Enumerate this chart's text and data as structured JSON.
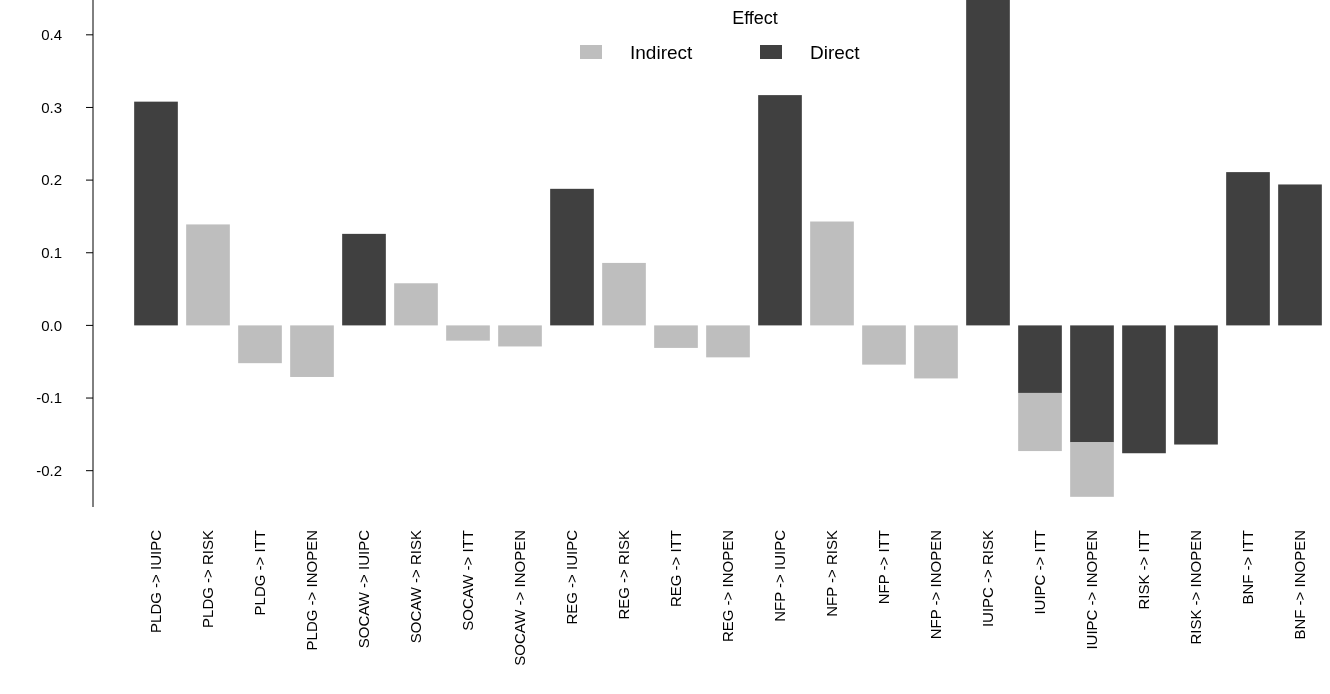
{
  "chart_data": {
    "type": "bar",
    "stacked": true,
    "legend_title": "Effect",
    "legend": "top",
    "categories": [
      "PLDG -> IUIPC",
      "PLDG -> RISK",
      "PLDG -> ITT",
      "PLDG -> INOPEN",
      "SOCAW -> IUIPC",
      "SOCAW -> RISK",
      "SOCAW -> ITT",
      "SOCAW -> INOPEN",
      "REG -> IUIPC",
      "REG -> RISK",
      "REG -> ITT",
      "REG -> INOPEN",
      "NFP -> IUIPC",
      "NFP -> RISK",
      "NFP -> ITT",
      "NFP -> INOPEN",
      "IUIPC -> RISK",
      "IUIPC -> ITT",
      "IUIPC -> INOPEN",
      "RISK -> ITT",
      "RISK -> INOPEN",
      "BNF -> ITT",
      "BNF -> INOPEN"
    ],
    "series": [
      {
        "name": "Direct",
        "color": "#404040",
        "values": [
          0.308,
          null,
          null,
          null,
          0.126,
          null,
          null,
          null,
          0.188,
          null,
          null,
          null,
          0.317,
          null,
          null,
          null,
          0.45,
          -0.093,
          -0.161,
          -0.176,
          -0.164,
          0.211,
          0.194
        ]
      },
      {
        "name": "Indirect",
        "color": "#bebebe",
        "values": [
          null,
          0.139,
          -0.052,
          -0.071,
          null,
          0.058,
          -0.021,
          -0.029,
          null,
          0.086,
          -0.031,
          -0.044,
          null,
          0.143,
          -0.054,
          -0.073,
          null,
          -0.08,
          -0.075,
          null,
          null,
          null,
          null
        ]
      }
    ],
    "ylim": [
      -0.25,
      0.45
    ],
    "yticks": [
      {
        "value": -0.2,
        "label": "-0.2"
      },
      {
        "value": -0.1,
        "label": "-0.1"
      },
      {
        "value": 0,
        "label": "0.0"
      },
      {
        "value": 0.1,
        "label": "0.1"
      },
      {
        "value": 0.2,
        "label": "0.2"
      },
      {
        "value": 0.3,
        "label": "0.3"
      },
      {
        "value": 0.4,
        "label": "0.4"
      }
    ]
  }
}
